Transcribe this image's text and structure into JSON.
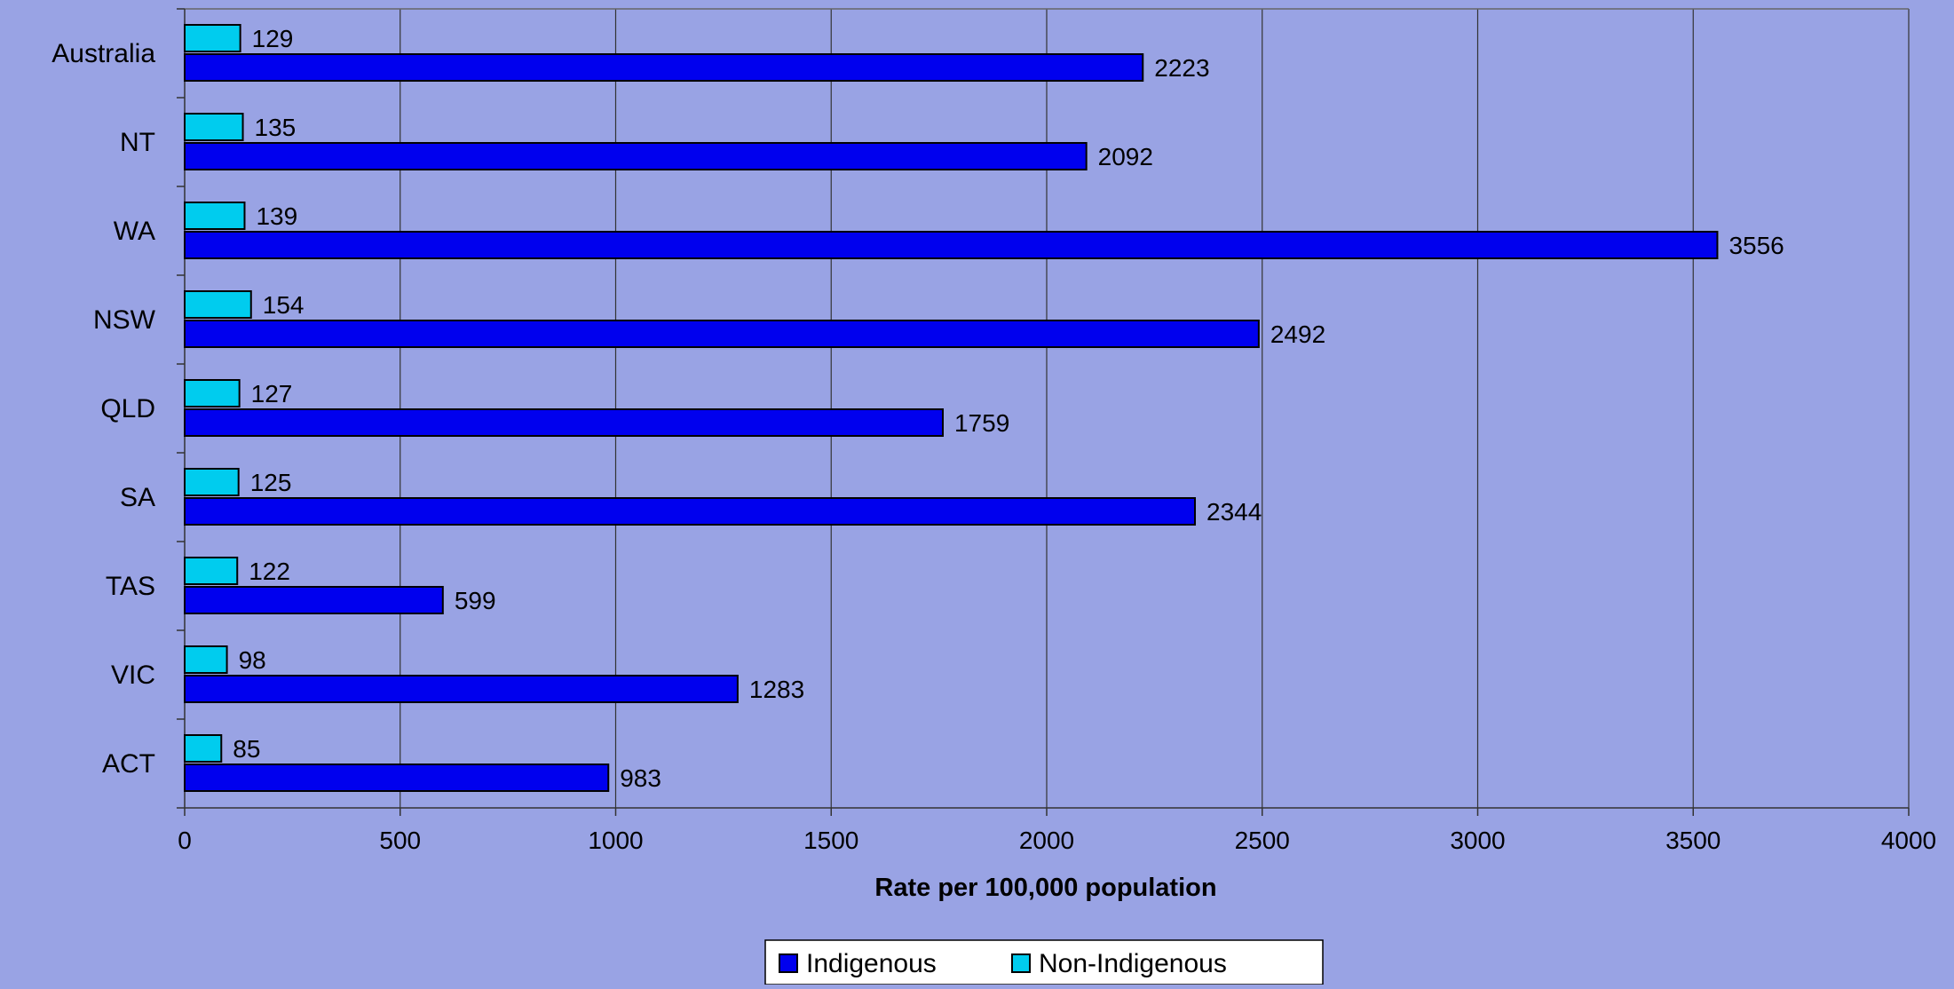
{
  "chart_data": {
    "type": "bar",
    "orientation": "horizontal",
    "categories": [
      "Australia",
      "NT",
      "WA",
      "NSW",
      "QLD",
      "SA",
      "TAS",
      "VIC",
      "ACT"
    ],
    "series": [
      {
        "name": "Non-Indigenous",
        "color": "#00ccee",
        "values": [
          129,
          135,
          139,
          154,
          127,
          125,
          122,
          98,
          85
        ]
      },
      {
        "name": "Indigenous",
        "color": "#0000ee",
        "values": [
          2223,
          2092,
          3556,
          2492,
          1759,
          2344,
          599,
          1283,
          983
        ]
      }
    ],
    "xlabel": "Rate per 100,000 population",
    "ylabel": "",
    "xlim": [
      0,
      4000
    ],
    "xticks": [
      0,
      500,
      1000,
      1500,
      2000,
      2500,
      3000,
      3500,
      4000
    ],
    "grid": "vertical",
    "legend": {
      "position": "bottom",
      "entries": [
        "Indigenous",
        "Non-Indigenous"
      ]
    },
    "background": "#99a3e4"
  }
}
